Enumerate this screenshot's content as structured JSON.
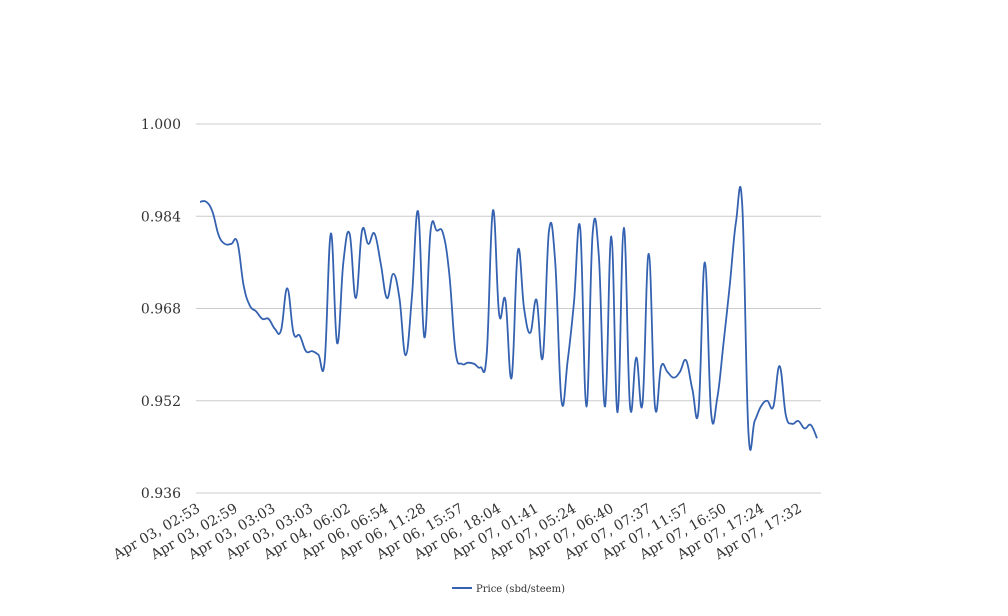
{
  "chart_data": {
    "type": "line",
    "title": "",
    "xlabel": "",
    "ylabel": "",
    "ylim": [
      0.936,
      1.0
    ],
    "y_ticks": [
      "1.000",
      "0.984",
      "0.968",
      "0.952",
      "0.936"
    ],
    "y_tick_values": [
      1.0,
      0.984,
      0.968,
      0.952,
      0.936
    ],
    "x_tick_labels": [
      "Apr 03, 02:53",
      "Apr 03, 02:59",
      "Apr 03, 03:03",
      "Apr 03, 03:03",
      "Apr 04, 06:02",
      "Apr 06, 06:54",
      "Apr 06, 11:28",
      "Apr 06, 15:57",
      "Apr 06, 18:04",
      "Apr 07, 01:41",
      "Apr 07, 05:24",
      "Apr 07, 06:40",
      "Apr 07, 07:37",
      "Apr 07, 11:57",
      "Apr 07, 16:50",
      "Apr 07, 17:24",
      "Apr 07, 17:32"
    ],
    "grid": true,
    "legend_position": "bottom",
    "series": [
      {
        "name": "Price (sbd/steem)",
        "color": "#3562b0",
        "values": [
          0.9865,
          0.9865,
          0.9848,
          0.9807,
          0.9792,
          0.9792,
          0.9795,
          0.972,
          0.9685,
          0.9675,
          0.9662,
          0.9662,
          0.9645,
          0.9642,
          0.9715,
          0.9638,
          0.9633,
          0.9606,
          0.9606,
          0.96,
          0.9588,
          0.981,
          0.962,
          0.976,
          0.981,
          0.9698,
          0.9815,
          0.9792,
          0.981,
          0.9758,
          0.9698,
          0.974,
          0.9698,
          0.9599,
          0.97,
          0.9848,
          0.963,
          0.9815,
          0.9815,
          0.981,
          0.974,
          0.9605,
          0.9584,
          0.9586,
          0.9584,
          0.9578,
          0.96,
          0.985,
          0.967,
          0.9695,
          0.956,
          0.978,
          0.968,
          0.9638,
          0.9695,
          0.9595,
          0.9815,
          0.976,
          0.952,
          0.959,
          0.969,
          0.982,
          0.951,
          0.981,
          0.977,
          0.951,
          0.9805,
          0.95,
          0.982,
          0.951,
          0.9595,
          0.9515,
          0.9775,
          0.951,
          0.958,
          0.957,
          0.956,
          0.957,
          0.959,
          0.954,
          0.9505,
          0.976,
          0.95,
          0.9525,
          0.962,
          0.972,
          0.983,
          0.986,
          0.9465,
          0.9485,
          0.951,
          0.952,
          0.951,
          0.958,
          0.9495,
          0.948,
          0.9485,
          0.9472,
          0.9478,
          0.9455
        ]
      }
    ]
  }
}
